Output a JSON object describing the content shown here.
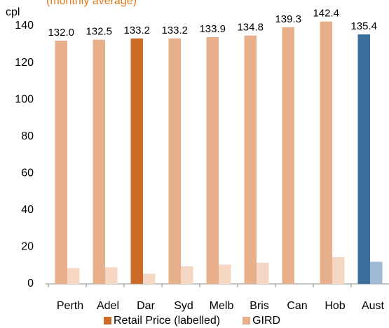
{
  "chart_data": {
    "type": "bar",
    "subtitle": "(monthly average)",
    "y_label": "cpl",
    "categories": [
      "Perth",
      "Adel",
      "Dar",
      "Syd",
      "Melb",
      "Bris",
      "Can",
      "Hob",
      "Aust"
    ],
    "series": [
      {
        "name": "Retail Price (labelled)",
        "color": "#cc6a28",
        "colors": [
          "#e8b08a",
          "#e8b08a",
          "#cc6a28",
          "#e8b08a",
          "#e8b08a",
          "#e8b08a",
          "#e8b08a",
          "#e8b08a",
          "#3b6f9c"
        ],
        "values": [
          132.0,
          132.5,
          133.2,
          133.2,
          133.9,
          134.8,
          139.3,
          142.4,
          135.4
        ],
        "value_labels": [
          "132.0",
          "132.5",
          "133.2",
          "133.2",
          "133.9",
          "134.8",
          "139.3",
          "142.4",
          "135.4"
        ]
      },
      {
        "name": "GIRD",
        "color": "#e8b08a",
        "colors": [
          "#f6d7c3",
          "#f6d7c3",
          "#f6d7c3",
          "#f6d7c3",
          "#f6d7c3",
          "#f6d7c3",
          "#f6d7c3",
          "#f6d7c3",
          "#9ebad4"
        ],
        "values": [
          8.5,
          9,
          5.5,
          9.5,
          10.5,
          11.5,
          null,
          14.5,
          12
        ]
      }
    ],
    "ylim": [
      0,
      140
    ],
    "yticks": [
      0,
      20,
      40,
      60,
      80,
      100,
      120,
      140
    ],
    "grid": false
  }
}
